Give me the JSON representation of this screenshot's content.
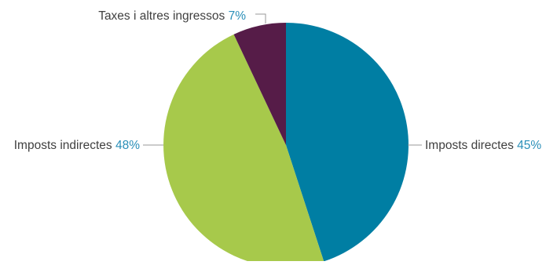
{
  "chart_data": {
    "type": "pie",
    "title": "",
    "start_angle_deg": 0,
    "direction": "clockwise",
    "slices": [
      {
        "label": "Imposts directes",
        "value": 45,
        "value_text": "45%",
        "color": "#007ea3"
      },
      {
        "label": "Imposts indirectes",
        "value": 48,
        "value_text": "48%",
        "color": "#a7c94b"
      },
      {
        "label": "Taxes i altres ingressos",
        "value": 7,
        "value_text": "7%",
        "color": "#561c48"
      }
    ],
    "label_text_color": "#404040",
    "value_text_color": "#2a8fb8",
    "leader_line_color": "#999999"
  }
}
